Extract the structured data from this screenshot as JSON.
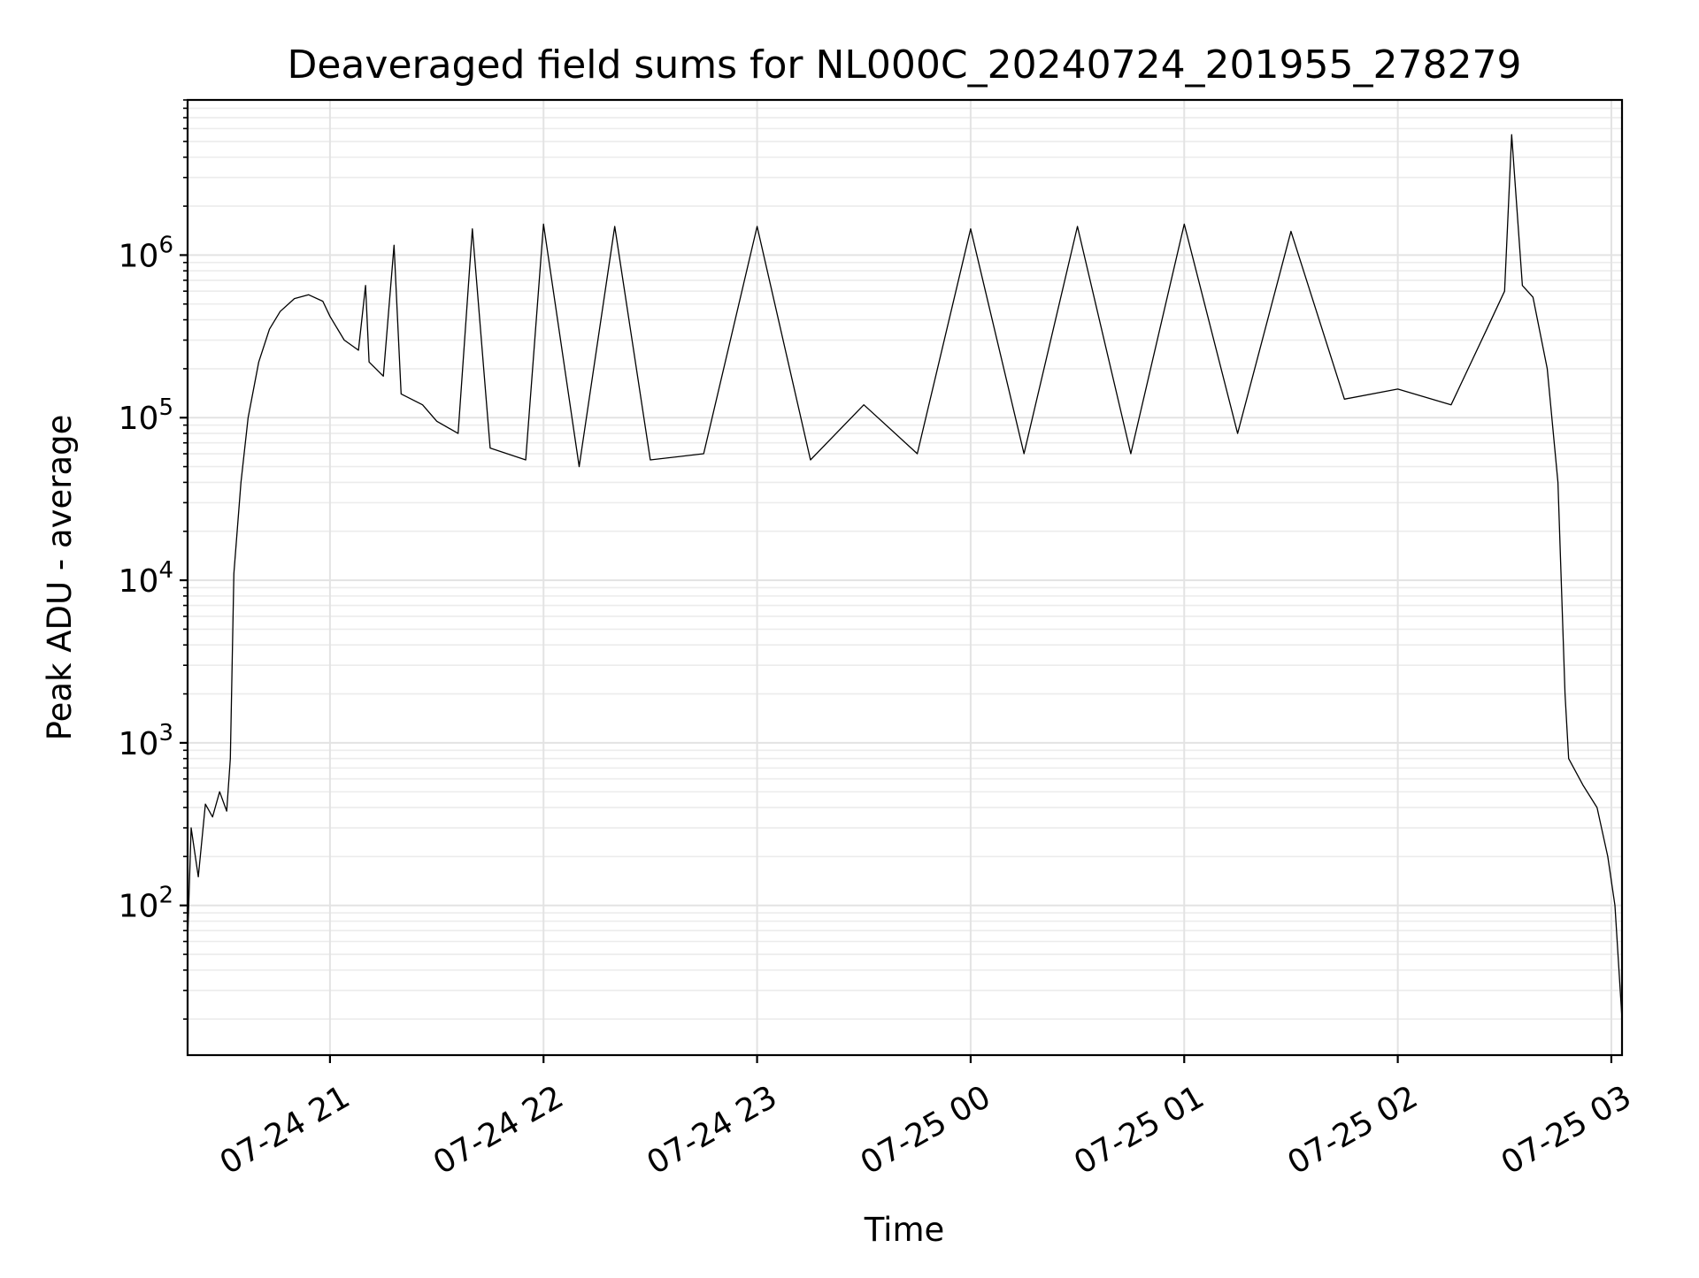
{
  "chart_data": {
    "type": "line",
    "title": "Deaveraged field sums for NL000C_20240724_201955_278279",
    "xlabel": "Time",
    "ylabel": "Peak ADU - average",
    "yscale": "log",
    "grid": "on (major and minor)",
    "legend": "none",
    "line_color": "#000000",
    "xlim": [
      "2024-07-24 20:20",
      "2024-07-25 03:03"
    ],
    "ylim": [
      12,
      9000000
    ],
    "x_ticks": [
      {
        "value": "2024-07-24 21:00",
        "label": "07-24 21"
      },
      {
        "value": "2024-07-24 22:00",
        "label": "07-24 22"
      },
      {
        "value": "2024-07-24 23:00",
        "label": "07-24 23"
      },
      {
        "value": "2024-07-25 00:00",
        "label": "07-25 00"
      },
      {
        "value": "2024-07-25 01:00",
        "label": "07-25 01"
      },
      {
        "value": "2024-07-25 02:00",
        "label": "07-25 02"
      },
      {
        "value": "2024-07-25 03:00",
        "label": "07-25 03"
      }
    ],
    "y_ticks": [
      {
        "value": 100,
        "base": "10",
        "exp": "2"
      },
      {
        "value": 1000,
        "base": "10",
        "exp": "3"
      },
      {
        "value": 10000,
        "base": "10",
        "exp": "4"
      },
      {
        "value": 100000,
        "base": "10",
        "exp": "5"
      },
      {
        "value": 1000000,
        "base": "10",
        "exp": "6"
      }
    ],
    "series": [
      {
        "points": [
          [
            "2024-07-24 20:20",
            60
          ],
          [
            "2024-07-24 20:21",
            300
          ],
          [
            "2024-07-24 20:23",
            150
          ],
          [
            "2024-07-24 20:25",
            420
          ],
          [
            "2024-07-24 20:27",
            350
          ],
          [
            "2024-07-24 20:29",
            500
          ],
          [
            "2024-07-24 20:31",
            380
          ],
          [
            "2024-07-24 20:32",
            800
          ],
          [
            "2024-07-24 20:33",
            11000
          ],
          [
            "2024-07-24 20:35",
            40000
          ],
          [
            "2024-07-24 20:37",
            100000
          ],
          [
            "2024-07-24 20:40",
            220000
          ],
          [
            "2024-07-24 20:43",
            350000
          ],
          [
            "2024-07-24 20:46",
            450000
          ],
          [
            "2024-07-24 20:50",
            540000
          ],
          [
            "2024-07-24 20:54",
            570000
          ],
          [
            "2024-07-24 20:58",
            520000
          ],
          [
            "2024-07-24 21:00",
            420000
          ],
          [
            "2024-07-24 21:04",
            300000
          ],
          [
            "2024-07-24 21:08",
            260000
          ],
          [
            "2024-07-24 21:10",
            650000
          ],
          [
            "2024-07-24 21:11",
            220000
          ],
          [
            "2024-07-24 21:15",
            180000
          ],
          [
            "2024-07-24 21:18",
            1150000
          ],
          [
            "2024-07-24 21:20",
            140000
          ],
          [
            "2024-07-24 21:26",
            120000
          ],
          [
            "2024-07-24 21:30",
            95000
          ],
          [
            "2024-07-24 21:36",
            80000
          ],
          [
            "2024-07-24 21:40",
            1450000
          ],
          [
            "2024-07-24 21:45",
            65000
          ],
          [
            "2024-07-24 21:55",
            55000
          ],
          [
            "2024-07-24 22:00",
            1550000
          ],
          [
            "2024-07-24 22:10",
            50000
          ],
          [
            "2024-07-24 22:20",
            1500000
          ],
          [
            "2024-07-24 22:30",
            55000
          ],
          [
            "2024-07-24 22:45",
            60000
          ],
          [
            "2024-07-24 23:00",
            1500000
          ],
          [
            "2024-07-24 23:15",
            55000
          ],
          [
            "2024-07-24 23:30",
            120000
          ],
          [
            "2024-07-24 23:45",
            60000
          ],
          [
            "2024-07-25 00:00",
            1450000
          ],
          [
            "2024-07-25 00:15",
            60000
          ],
          [
            "2024-07-25 00:30",
            1500000
          ],
          [
            "2024-07-25 00:45",
            60000
          ],
          [
            "2024-07-25 01:00",
            1550000
          ],
          [
            "2024-07-25 01:15",
            80000
          ],
          [
            "2024-07-25 01:30",
            1400000
          ],
          [
            "2024-07-25 01:45",
            130000
          ],
          [
            "2024-07-25 02:00",
            150000
          ],
          [
            "2024-07-25 02:15",
            120000
          ],
          [
            "2024-07-25 02:25",
            350000
          ],
          [
            "2024-07-25 02:30",
            600000
          ],
          [
            "2024-07-25 02:32",
            5500000
          ],
          [
            "2024-07-25 02:35",
            650000
          ],
          [
            "2024-07-25 02:38",
            550000
          ],
          [
            "2024-07-25 02:42",
            200000
          ],
          [
            "2024-07-25 02:45",
            40000
          ],
          [
            "2024-07-25 02:47",
            2000
          ],
          [
            "2024-07-25 02:48",
            800
          ],
          [
            "2024-07-25 02:52",
            550
          ],
          [
            "2024-07-25 02:56",
            400
          ],
          [
            "2024-07-25 02:59",
            200
          ],
          [
            "2024-07-25 03:01",
            100
          ],
          [
            "2024-07-25 03:03",
            20
          ]
        ]
      }
    ]
  }
}
